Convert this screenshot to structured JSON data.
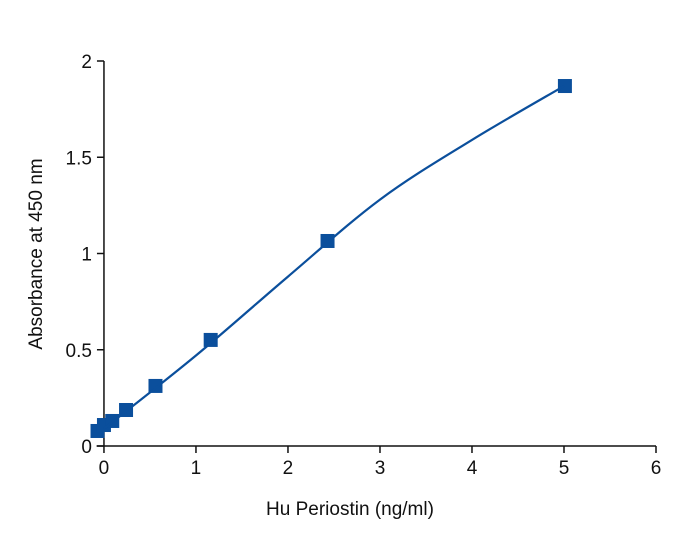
{
  "chart_data": {
    "type": "scatter",
    "x_label": "Hu Periostin (ng/ml)",
    "y_label": "Absorbance at 450 nm",
    "xlim": [
      -0.08,
      6
    ],
    "ylim": [
      0,
      2
    ],
    "xticks": [
      0,
      1,
      2,
      3,
      4,
      5,
      6
    ],
    "yticks": [
      0,
      0.5,
      1,
      1.5,
      2
    ],
    "series": [
      {
        "color": "#0b4f9c",
        "marker": "square",
        "x": [
          -0.07,
          0,
          0.09,
          0.24,
          0.56,
          1.16,
          2.43,
          5.01
        ],
        "values": [
          0.078,
          0.109,
          0.13,
          0.187,
          0.312,
          0.551,
          1.065,
          1.87
        ]
      },
      {
        "color": "#0b4f9c",
        "marker": "line",
        "x": [
          0,
          1,
          2,
          3,
          4,
          5
        ],
        "values": [
          0.09,
          0.47,
          0.88,
          1.28,
          1.59,
          1.87
        ]
      }
    ]
  }
}
